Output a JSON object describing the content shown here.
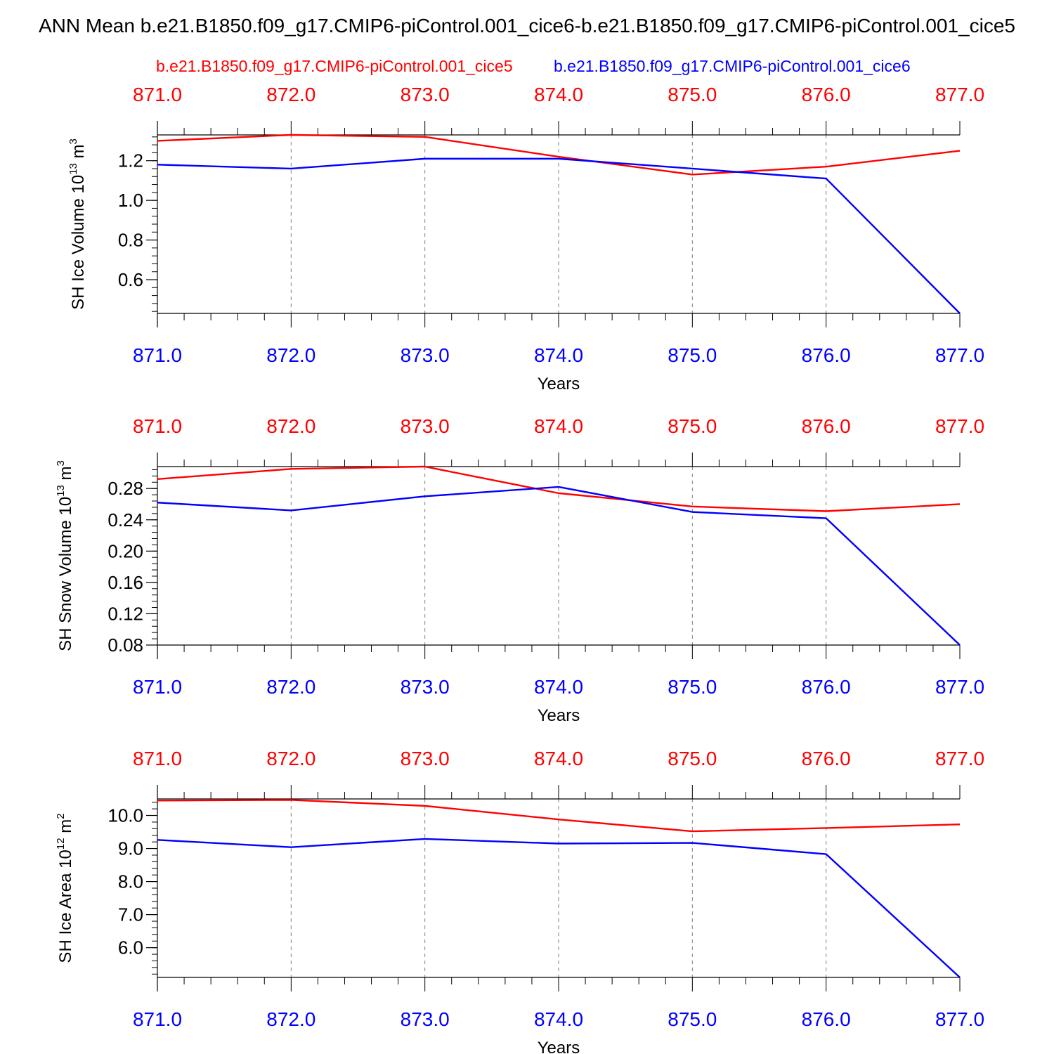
{
  "title": "ANN Mean b.e21.B1850.f09_g17.CMIP6-piControl.001_cice6-b.e21.B1850.f09_g17.CMIP6-piControl.001_cice5",
  "legend": {
    "left": "b.e21.B1850.f09_g17.CMIP6-piControl.001_cice5",
    "right": "b.e21.B1850.f09_g17.CMIP6-piControl.001_cice6"
  },
  "colors": {
    "cice5": "#ff0000",
    "cice6": "#0000ff",
    "axis": "#000000",
    "grid": "#808080"
  },
  "chart_data": [
    {
      "type": "line",
      "ylabel": "SH Ice Volume 10",
      "ylabel_exp": "13",
      "ylabel_unit": " m",
      "ylabel_unit_exp": "3",
      "xlabel": "Years",
      "x": [
        871,
        872,
        873,
        874,
        875,
        876,
        877
      ],
      "xlim": [
        871,
        877
      ],
      "ylim": [
        0.43,
        1.33
      ],
      "yticks": [
        0.6,
        0.8,
        1.0,
        1.2
      ],
      "ytick_labels": [
        "0.6",
        "0.8",
        "1.0",
        "1.2"
      ],
      "yminor_step": 0.04,
      "xtick_labels": [
        "871.0",
        "872.0",
        "873.0",
        "874.0",
        "875.0",
        "876.0",
        "877.0"
      ],
      "grid": "vertical dashed",
      "series": [
        {
          "name": "b.e21.B1850.f09_g17.CMIP6-piControl.001_cice5",
          "color": "#ff0000",
          "values": [
            1.3,
            1.33,
            1.32,
            1.22,
            1.13,
            1.17,
            1.25
          ]
        },
        {
          "name": "b.e21.B1850.f09_g17.CMIP6-piControl.001_cice6",
          "color": "#0000ff",
          "values": [
            1.18,
            1.16,
            1.21,
            1.21,
            1.16,
            1.11,
            0.43
          ]
        }
      ]
    },
    {
      "type": "line",
      "ylabel": "SH Snow Volume 10",
      "ylabel_exp": "13",
      "ylabel_unit": " m",
      "ylabel_unit_exp": "3",
      "xlabel": "Years",
      "x": [
        871,
        872,
        873,
        874,
        875,
        876,
        877
      ],
      "xlim": [
        871,
        877
      ],
      "ylim": [
        0.08,
        0.308
      ],
      "yticks": [
        0.08,
        0.12,
        0.16,
        0.2,
        0.24,
        0.28
      ],
      "ytick_labels": [
        "0.08",
        "0.12",
        "0.16",
        "0.20",
        "0.24",
        "0.28"
      ],
      "yminor_step": 0.008,
      "xtick_labels": [
        "871.0",
        "872.0",
        "873.0",
        "874.0",
        "875.0",
        "876.0",
        "877.0"
      ],
      "grid": "vertical dashed",
      "series": [
        {
          "name": "b.e21.B1850.f09_g17.CMIP6-piControl.001_cice5",
          "color": "#ff0000",
          "values": [
            0.292,
            0.305,
            0.308,
            0.274,
            0.257,
            0.251,
            0.26
          ]
        },
        {
          "name": "b.e21.B1850.f09_g17.CMIP6-piControl.001_cice6",
          "color": "#0000ff",
          "values": [
            0.262,
            0.252,
            0.27,
            0.282,
            0.25,
            0.242,
            0.08
          ]
        }
      ]
    },
    {
      "type": "line",
      "ylabel": "SH Ice Area 10",
      "ylabel_exp": "12",
      "ylabel_unit": " m",
      "ylabel_unit_exp": "2",
      "xlabel": "Years",
      "x": [
        871,
        872,
        873,
        874,
        875,
        876,
        877
      ],
      "xlim": [
        871,
        877
      ],
      "ylim": [
        5.1,
        10.5
      ],
      "yticks": [
        6.0,
        7.0,
        8.0,
        9.0,
        10.0
      ],
      "ytick_labels": [
        "6.0",
        "7.0",
        "8.0",
        "9.0",
        "10.0"
      ],
      "yminor_step": 0.2,
      "xtick_labels": [
        "871.0",
        "872.0",
        "873.0",
        "874.0",
        "875.0",
        "876.0",
        "877.0"
      ],
      "grid": "vertical dashed",
      "series": [
        {
          "name": "b.e21.B1850.f09_g17.CMIP6-piControl.001_cice5",
          "color": "#ff0000",
          "values": [
            10.45,
            10.47,
            10.29,
            9.88,
            9.52,
            9.62,
            9.73
          ]
        },
        {
          "name": "b.e21.B1850.f09_g17.CMIP6-piControl.001_cice6",
          "color": "#0000ff",
          "values": [
            9.26,
            9.04,
            9.29,
            9.15,
            9.17,
            8.83,
            5.1
          ]
        }
      ]
    }
  ]
}
